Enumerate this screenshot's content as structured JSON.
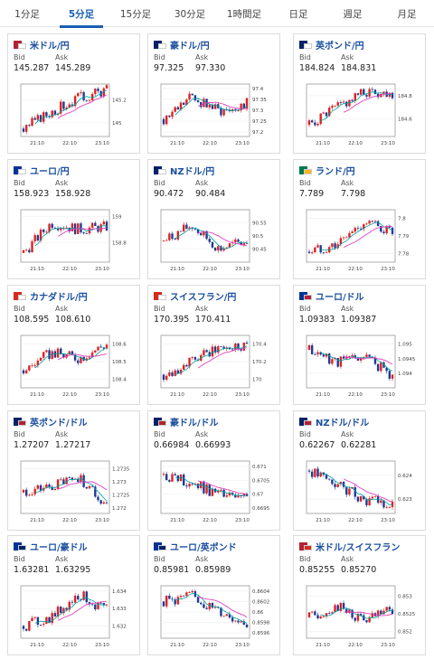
{
  "tabs": [
    {
      "label": "1分足",
      "active": false
    },
    {
      "label": "5分足",
      "active": true
    },
    {
      "label": "15分足",
      "active": false
    },
    {
      "label": "30分足",
      "active": false
    },
    {
      "label": "1時間足",
      "active": false
    },
    {
      "label": "日足",
      "active": false
    },
    {
      "label": "週足",
      "active": false
    },
    {
      "label": "月足",
      "active": false
    }
  ],
  "labels": {
    "bid": "Bid",
    "ask": "Ask"
  },
  "colors": {
    "up": "#e02020",
    "down": "#1f3a93",
    "ma_short": "#00a0a0",
    "ma_long": "#e040c0",
    "link": "#1a4fa0",
    "tab_active": "#1a5fb4"
  },
  "cards": [
    {
      "pair": "米ドル/円",
      "flag_icon": "usd-jpy-flag-icon",
      "flags": [
        "#b22234",
        "#ffffff"
      ],
      "bid": "145.287",
      "ask": "145.289",
      "chart_data": {
        "type": "candlestick",
        "x_ticks": [
          "21:10",
          "22:10",
          "23:10"
        ],
        "y_ticks": [
          "145.2",
          "145"
        ],
        "ylim": [
          144.88,
          145.34
        ],
        "trend": [
          144.95,
          145.1,
          145.22,
          145.29
        ]
      }
    },
    {
      "pair": "豪ドル/円",
      "flag_icon": "aud-jpy-flag-icon",
      "flags": [
        "#012169",
        "#ffffff"
      ],
      "bid": "97.325",
      "ask": "97.330",
      "chart_data": {
        "type": "candlestick",
        "x_ticks": [
          "21:10",
          "22:10",
          "23:10"
        ],
        "y_ticks": [
          "97.4",
          "97.35",
          "97.3",
          "97.25",
          "97.2"
        ],
        "ylim": [
          97.18,
          97.42
        ],
        "trend": [
          97.26,
          97.36,
          97.3,
          97.33
        ]
      }
    },
    {
      "pair": "英ポンド/円",
      "flag_icon": "gbp-jpy-flag-icon",
      "flags": [
        "#012169",
        "#ffffff"
      ],
      "bid": "184.824",
      "ask": "184.831",
      "chart_data": {
        "type": "candlestick",
        "x_ticks": [
          "21:10",
          "22:10",
          "23:10"
        ],
        "y_ticks": [
          "184.8",
          "184.6"
        ],
        "ylim": [
          184.45,
          184.9
        ],
        "trend": [
          184.55,
          184.7,
          184.83,
          184.82
        ]
      }
    },
    {
      "pair": "ユーロ/円",
      "flag_icon": "eur-jpy-flag-icon",
      "flags": [
        "#003399",
        "#ffffff"
      ],
      "bid": "158.923",
      "ask": "158.928",
      "chart_data": {
        "type": "candlestick",
        "x_ticks": [
          "21:10",
          "22:10",
          "23:10"
        ],
        "y_ticks": [
          "159",
          "158.8"
        ],
        "ylim": [
          158.65,
          159.05
        ],
        "trend": [
          158.72,
          158.95,
          158.9,
          158.92
        ]
      }
    },
    {
      "pair": "NZドル/円",
      "flag_icon": "nzd-jpy-flag-icon",
      "flags": [
        "#012169",
        "#ffffff"
      ],
      "bid": "90.472",
      "ask": "90.484",
      "chart_data": {
        "type": "candlestick",
        "x_ticks": [
          "21:10",
          "22:10",
          "23:10"
        ],
        "y_ticks": [
          "90.55",
          "90.5",
          "90.45"
        ],
        "ylim": [
          90.4,
          90.6
        ],
        "trend": [
          90.48,
          90.54,
          90.45,
          90.48
        ]
      }
    },
    {
      "pair": "ランド/円",
      "flag_icon": "zar-jpy-flag-icon",
      "flags": [
        "#007a4d",
        "#ffb612"
      ],
      "bid": "7.789",
      "ask": "7.798",
      "chart_data": {
        "type": "candlestick",
        "x_ticks": [
          "21:10",
          "22:10",
          "23:10"
        ],
        "y_ticks": [
          "7.8",
          "7.79",
          "7.78"
        ],
        "ylim": [
          7.775,
          7.805
        ],
        "trend": [
          7.781,
          7.785,
          7.798,
          7.792
        ]
      }
    },
    {
      "pair": "カナダドル/円",
      "flag_icon": "cad-jpy-flag-icon",
      "flags": [
        "#d52b1e",
        "#ffffff"
      ],
      "bid": "108.595",
      "ask": "108.610",
      "chart_data": {
        "type": "candlestick",
        "x_ticks": [
          "21:10",
          "22:10",
          "23:10"
        ],
        "y_ticks": [
          "108.6",
          "108.5",
          "108.4"
        ],
        "ylim": [
          108.35,
          108.65
        ],
        "trend": [
          108.45,
          108.55,
          108.52,
          108.6
        ]
      }
    },
    {
      "pair": "スイスフラン/円",
      "flag_icon": "chf-jpy-flag-icon",
      "flags": [
        "#d52b1e",
        "#ffffff"
      ],
      "bid": "170.395",
      "ask": "170.411",
      "chart_data": {
        "type": "candlestick",
        "x_ticks": [
          "21:10",
          "22:10",
          "23:10"
        ],
        "y_ticks": [
          "170.4",
          "170.2",
          "170"
        ],
        "ylim": [
          169.9,
          170.5
        ],
        "trend": [
          170.05,
          170.2,
          170.35,
          170.4
        ]
      }
    },
    {
      "pair": "ユーロ/ドル",
      "flag_icon": "eur-usd-flag-icon",
      "flags": [
        "#003399",
        "#b22234"
      ],
      "bid": "1.09383",
      "ask": "1.09387",
      "chart_data": {
        "type": "candlestick",
        "x_ticks": [
          "21:10",
          "22:10",
          "23:10"
        ],
        "y_ticks": [
          "1.095",
          "1.0945",
          "1.094"
        ],
        "ylim": [
          1.0935,
          1.0953
        ],
        "trend": [
          1.0948,
          1.0944,
          1.0946,
          1.0939
        ]
      }
    },
    {
      "pair": "英ポンド/ドル",
      "flag_icon": "gbp-usd-flag-icon",
      "flags": [
        "#012169",
        "#b22234"
      ],
      "bid": "1.27207",
      "ask": "1.27217",
      "chart_data": {
        "type": "candlestick",
        "x_ticks": [
          "21:10",
          "22:10",
          "23:10"
        ],
        "y_ticks": [
          "1.2735",
          "1.273",
          "1.2725",
          "1.272"
        ],
        "ylim": [
          1.2718,
          1.2738
        ],
        "trend": [
          1.2726,
          1.2728,
          1.2732,
          1.2721
        ]
      }
    },
    {
      "pair": "豪ドル/ドル",
      "flag_icon": "aud-usd-flag-icon",
      "flags": [
        "#012169",
        "#b22234"
      ],
      "bid": "0.66984",
      "ask": "0.66993",
      "chart_data": {
        "type": "candlestick",
        "x_ticks": [
          "21:10",
          "22:10",
          "23:10"
        ],
        "y_ticks": [
          "0.671",
          "0.6705",
          "0.67",
          "0.6695"
        ],
        "ylim": [
          0.6693,
          0.6712
        ],
        "trend": [
          0.6707,
          0.6704,
          0.67,
          0.6698
        ]
      }
    },
    {
      "pair": "NZドル/ドル",
      "flag_icon": "nzd-usd-flag-icon",
      "flags": [
        "#012169",
        "#b22234"
      ],
      "bid": "0.62267",
      "ask": "0.62281",
      "chart_data": {
        "type": "candlestick",
        "x_ticks": [
          "21:10",
          "22:10",
          "23:10"
        ],
        "y_ticks": [
          "0.624",
          "0.623"
        ],
        "ylim": [
          0.6224,
          0.6246
        ],
        "trend": [
          0.6242,
          0.6236,
          0.623,
          0.6227
        ]
      }
    },
    {
      "pair": "ユーロ/豪ドル",
      "flag_icon": "eur-aud-flag-icon",
      "flags": [
        "#003399",
        "#012169"
      ],
      "bid": "1.63281",
      "ask": "1.63295",
      "chart_data": {
        "type": "candlestick",
        "x_ticks": [
          "21:10",
          "22:10",
          "23:10"
        ],
        "y_ticks": [
          "1.634",
          "1.633",
          "1.632"
        ],
        "ylim": [
          1.6313,
          1.6343
        ],
        "trend": [
          1.632,
          1.6325,
          1.6338,
          1.6329
        ]
      }
    },
    {
      "pair": "ユーロ/英ポンド",
      "flag_icon": "eur-gbp-flag-icon",
      "flags": [
        "#003399",
        "#012169"
      ],
      "bid": "0.85981",
      "ask": "0.85989",
      "chart_data": {
        "type": "candlestick",
        "x_ticks": [
          "21:10",
          "22:10",
          "23:10"
        ],
        "y_ticks": [
          "0.8604",
          "0.8602",
          "0.86",
          "0.8598",
          "0.8596"
        ],
        "ylim": [
          0.8595,
          0.8605
        ],
        "trend": [
          0.8602,
          0.8603,
          0.86,
          0.8598
        ]
      }
    },
    {
      "pair": "米ドル/スイスフラン",
      "flag_icon": "usd-chf-flag-icon",
      "flags": [
        "#b22234",
        "#d52b1e"
      ],
      "bid": "0.85255",
      "ask": "0.85270",
      "chart_data": {
        "type": "candlestick",
        "x_ticks": [
          "21:10",
          "22:10",
          "23:10"
        ],
        "y_ticks": [
          "0.853",
          "0.8525",
          "0.852"
        ],
        "ylim": [
          0.8518,
          0.8533
        ],
        "trend": [
          0.8524,
          0.8527,
          0.8523,
          0.8526
        ]
      }
    }
  ]
}
